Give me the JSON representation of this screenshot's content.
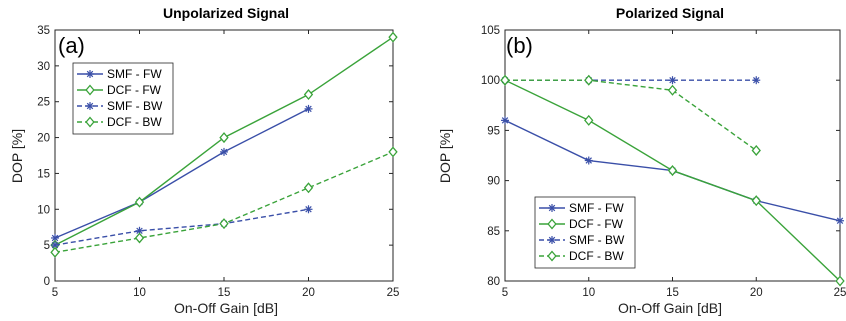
{
  "colors": {
    "smf": "#3a4fa8",
    "dcf": "#3aa33a",
    "axis": "#262626"
  },
  "chart_data": [
    {
      "type": "line",
      "panel_label": "(a)",
      "title": "Unpolarized Signal",
      "xlabel": "On-Off Gain [dB]",
      "ylabel": "DOP [%]",
      "xlim": [
        5,
        25
      ],
      "ylim": [
        0,
        35
      ],
      "xticks": [
        5,
        10,
        15,
        20,
        25
      ],
      "yticks": [
        0,
        5,
        10,
        15,
        20,
        25,
        30,
        35
      ],
      "grid": false,
      "legend_placement": "top-left",
      "series": [
        {
          "name": "SMF - FW",
          "fiber": "smf",
          "dash": "solid",
          "marker": "star",
          "x": [
            5,
            10,
            15,
            20
          ],
          "y": [
            6,
            11,
            18,
            24
          ]
        },
        {
          "name": "DCF - FW",
          "fiber": "dcf",
          "dash": "solid",
          "marker": "diamond",
          "x": [
            5,
            10,
            15,
            20,
            25
          ],
          "y": [
            5,
            11,
            20,
            26,
            34
          ]
        },
        {
          "name": "SMF - BW",
          "fiber": "smf",
          "dash": "dashed",
          "marker": "star",
          "x": [
            5,
            10,
            15,
            20
          ],
          "y": [
            5,
            7,
            8,
            10
          ]
        },
        {
          "name": "DCF - BW",
          "fiber": "dcf",
          "dash": "dashed",
          "marker": "diamond",
          "x": [
            5,
            10,
            15,
            20,
            25
          ],
          "y": [
            4,
            6,
            8,
            13,
            18
          ]
        }
      ]
    },
    {
      "type": "line",
      "panel_label": "(b)",
      "title": "Polarized Signal",
      "xlabel": "On-Off Gain [dB]",
      "ylabel": "DOP [%]",
      "xlim": [
        5,
        25
      ],
      "ylim": [
        80,
        105
      ],
      "xticks": [
        5,
        10,
        15,
        20,
        25
      ],
      "yticks": [
        80,
        85,
        90,
        95,
        100,
        105
      ],
      "grid": false,
      "legend_placement": "bottom-left",
      "series": [
        {
          "name": "SMF - FW",
          "fiber": "smf",
          "dash": "solid",
          "marker": "star",
          "x": [
            5,
            10,
            15,
            20,
            25
          ],
          "y": [
            96,
            92,
            91,
            88,
            86
          ]
        },
        {
          "name": "DCF - FW",
          "fiber": "dcf",
          "dash": "solid",
          "marker": "diamond",
          "x": [
            5,
            10,
            15,
            20,
            25
          ],
          "y": [
            100,
            96,
            91,
            88,
            80
          ]
        },
        {
          "name": "SMF - BW",
          "fiber": "smf",
          "dash": "dashed",
          "marker": "star",
          "x": [
            5,
            10,
            15,
            20
          ],
          "y": [
            100,
            100,
            100,
            100
          ]
        },
        {
          "name": "DCF - BW",
          "fiber": "dcf",
          "dash": "dashed",
          "marker": "diamond",
          "x": [
            5,
            10,
            15,
            20
          ],
          "y": [
            100,
            100,
            99,
            93
          ]
        }
      ]
    }
  ]
}
